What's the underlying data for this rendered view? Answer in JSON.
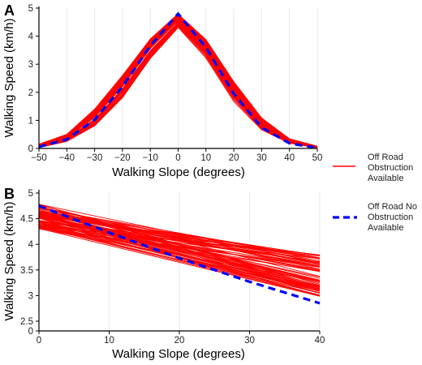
{
  "chart_data": [
    {
      "panel_tag": "A",
      "type": "line",
      "xlabel": "Walking Slope (degrees)",
      "ylabel": "Walking Speed (km/h)",
      "xlim": [
        -50,
        50
      ],
      "ylim": [
        0,
        5
      ],
      "xticks": [
        -50,
        -40,
        -30,
        -20,
        -10,
        0,
        10,
        20,
        30,
        40,
        50
      ],
      "xtick_labels": [
        "−50",
        "−40",
        "−30",
        "−20",
        "−10",
        "0",
        "10",
        "20",
        "30",
        "40",
        "50"
      ],
      "yticks": [
        0,
        1,
        2,
        3,
        4,
        5
      ],
      "grid": "vertical",
      "series": [
        {
          "name": "Off Road Obstruction Available",
          "style": "red-band-many-thin-lines",
          "color": "#ff0000",
          "peak_x": 0,
          "peak_y_range": [
            4.3,
            4.8
          ],
          "x": [
            -50,
            -40,
            -30,
            -20,
            -10,
            0,
            10,
            20,
            30,
            40,
            50
          ],
          "y_lower": [
            0.03,
            0.25,
            0.8,
            1.8,
            3.2,
            4.3,
            3.2,
            1.65,
            0.65,
            0.18,
            0.02
          ],
          "y_upper": [
            0.15,
            0.5,
            1.4,
            2.6,
            3.9,
            4.8,
            3.9,
            2.4,
            1.1,
            0.35,
            0.08
          ]
        },
        {
          "name": "Off Road No Obstruction Available",
          "style": "dashed",
          "color": "#0000ff",
          "x": [
            -50,
            -40,
            -30,
            -20,
            -10,
            0,
            10,
            20,
            30,
            40,
            50
          ],
          "y": [
            0.06,
            0.32,
            1.02,
            2.2,
            3.65,
            4.8,
            3.6,
            1.95,
            0.75,
            0.18,
            0.02
          ]
        }
      ]
    },
    {
      "panel_tag": "B",
      "type": "line",
      "xlabel": "Walking Slope (degrees)",
      "ylabel": "Walking Speed (km/h)",
      "xlim": [
        0,
        40
      ],
      "ylim": [
        0,
        5
      ],
      "xticks": [
        0,
        10,
        20,
        30,
        40
      ],
      "yticks": [
        0,
        2.5,
        3,
        3.5,
        4,
        4.5,
        5
      ],
      "ytick_labels": [
        "0",
        "2.5",
        "3",
        "3.5",
        "4",
        "4.5",
        "5"
      ],
      "axis_break": true,
      "grid": "vertical",
      "series": [
        {
          "name": "Off Road Obstruction Available",
          "style": "red-fan-of-thin-lines",
          "color": "#ff0000",
          "start_y_range": [
            4.3,
            4.8
          ],
          "end_y_range": [
            2.8,
            3.95
          ]
        },
        {
          "name": "Off Road No Obstruction Available",
          "style": "dashed",
          "color": "#0000ff",
          "x": [
            0,
            10,
            20,
            30,
            40
          ],
          "y": [
            4.75,
            4.23,
            3.73,
            3.27,
            2.85
          ]
        }
      ]
    }
  ],
  "legend": {
    "placement": "right",
    "items": [
      {
        "label_lines": [
          "Off Road",
          "Obstruction",
          "Available"
        ],
        "color": "#ff0000",
        "style": "solid"
      },
      {
        "label_lines": [
          "Off Road No",
          "Obstruction",
          "Available"
        ],
        "color": "#0000ff",
        "style": "dashed"
      }
    ]
  }
}
